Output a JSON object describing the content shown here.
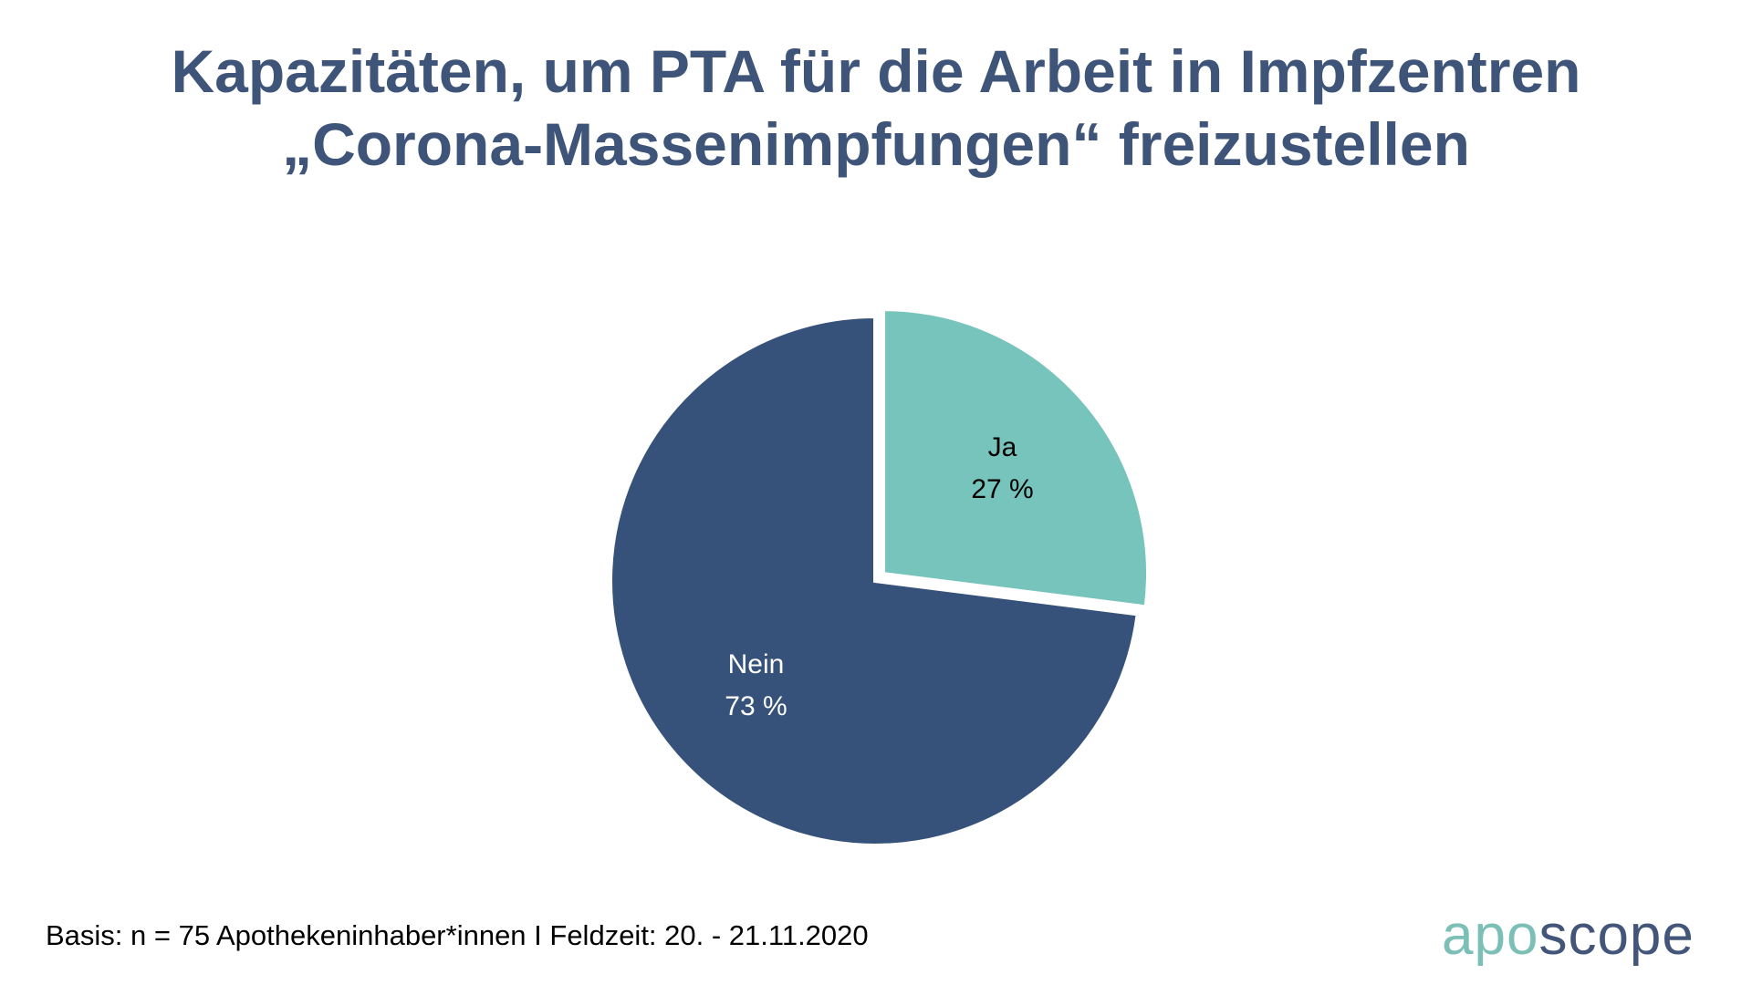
{
  "title_lines": [
    "Kapazitäten, um PTA für die Arbeit in Impfzentren",
    "„Corona-Massenimpfungen“ freizustellen"
  ],
  "footer": "Basis: n = 75 Apothekeninhaber*innen I Feldzeit: 20. - 21.11.2020",
  "logo": {
    "part1": "apo",
    "part2": "scope"
  },
  "chart_data": {
    "type": "pie",
    "title": "Kapazitäten, um PTA für die Arbeit in Impfzentren „Corona-Massenimpfungen“ freizustellen",
    "slices": [
      {
        "label": "Ja",
        "value": 27,
        "value_label": "27 %",
        "color": "#76c4bc",
        "text_color": "#000000",
        "exploded": true
      },
      {
        "label": "Nein",
        "value": 73,
        "value_label": "73 %",
        "color": "#37527a",
        "text_color": "#ffffff",
        "exploded": false
      }
    ]
  }
}
